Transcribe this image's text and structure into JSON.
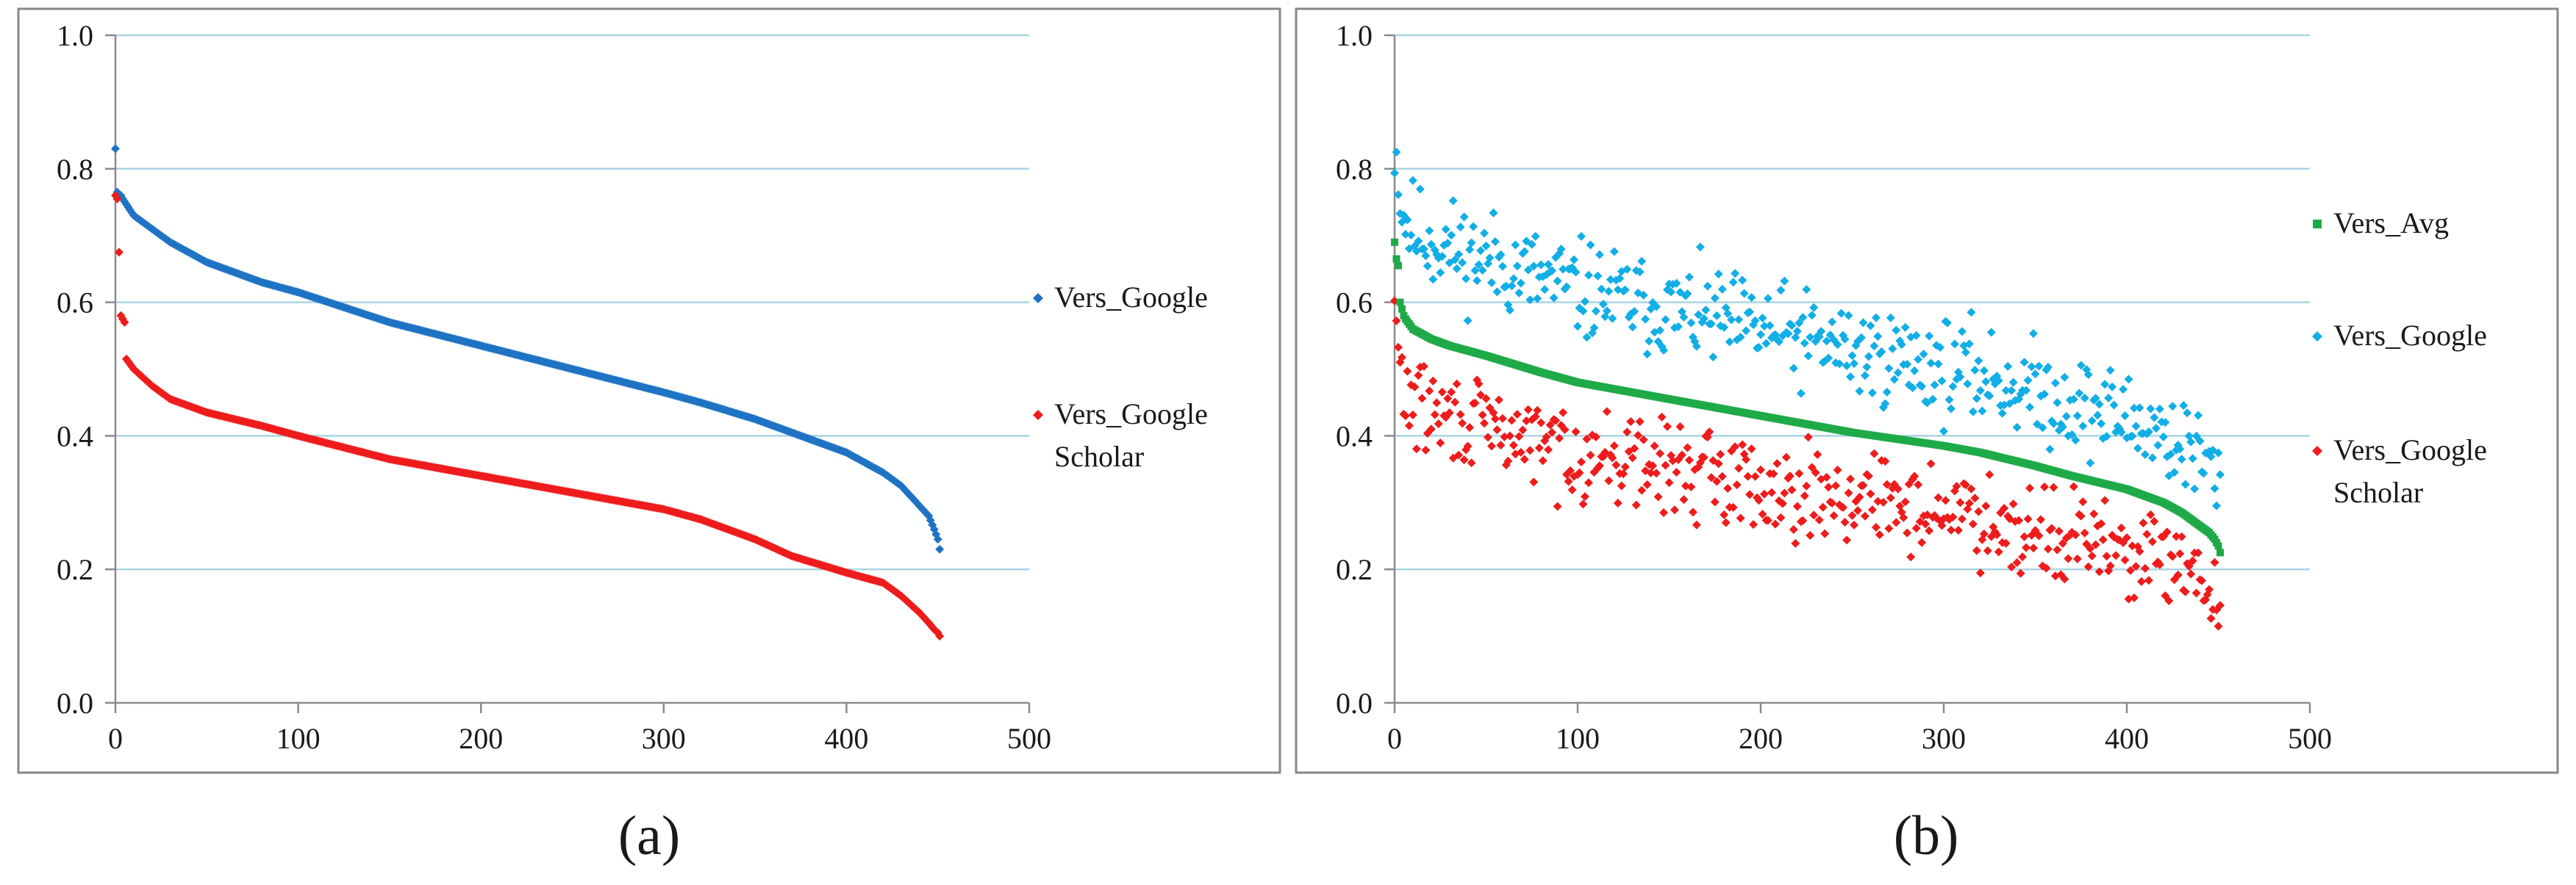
{
  "colors": {
    "google": "#1f73c4",
    "google_light": "#12aee6",
    "scholar": "#ee1c1c",
    "avg": "#1faa48",
    "grid": "#a9d4e4",
    "axis": "#8a8a8a",
    "frame": "#878787",
    "text": "#1a1a1a"
  },
  "chart_data": [
    {
      "type": "scatter",
      "panel_label": "(a)",
      "xlim": [
        0,
        500
      ],
      "ylim": [
        0.0,
        1.0
      ],
      "xticks": [
        "0",
        "100",
        "200",
        "300",
        "400",
        "500"
      ],
      "yticks": [
        "0.0",
        "0.2",
        "0.4",
        "0.6",
        "0.8",
        "1.0"
      ],
      "grid": true,
      "legend_position": "right",
      "legend": [
        {
          "lines": [
            "Vers_Google"
          ],
          "series": "google",
          "marker": "diamond"
        },
        {
          "lines": [
            "Vers_Google",
            "Scholar"
          ],
          "series": "scholar",
          "marker": "diamond"
        }
      ],
      "series": [
        {
          "key": "google",
          "name": "Vers_Google",
          "n": 452,
          "sorted_descending": true,
          "outliers": [
            [
              0,
              0.83
            ],
            [
              1,
              0.765
            ],
            [
              2,
              0.76
            ],
            [
              3,
              0.76
            ]
          ],
          "curve_x": [
            4,
            10,
            20,
            30,
            50,
            80,
            100,
            150,
            200,
            250,
            300,
            320,
            350,
            370,
            400,
            420,
            430,
            440,
            445,
            448,
            450,
            451,
            452
          ],
          "curve_y": [
            0.755,
            0.73,
            0.71,
            0.69,
            0.66,
            0.63,
            0.615,
            0.57,
            0.535,
            0.5,
            0.465,
            0.45,
            0.425,
            0.405,
            0.375,
            0.345,
            0.325,
            0.295,
            0.28,
            0.26,
            0.245,
            0.23,
            0.205
          ]
        },
        {
          "key": "scholar",
          "name": "Vers_Google Scholar",
          "n": 452,
          "sorted_descending": true,
          "outliers": [
            [
              0,
              0.76
            ],
            [
              1,
              0.755
            ],
            [
              2,
              0.675
            ],
            [
              3,
              0.58
            ],
            [
              4,
              0.575
            ],
            [
              5,
              0.57
            ]
          ],
          "curve_x": [
            6,
            10,
            20,
            30,
            50,
            80,
            100,
            150,
            200,
            250,
            300,
            320,
            350,
            370,
            400,
            420,
            430,
            440,
            445,
            448,
            450,
            451,
            452
          ],
          "curve_y": [
            0.515,
            0.5,
            0.475,
            0.455,
            0.435,
            0.415,
            0.4,
            0.365,
            0.34,
            0.315,
            0.29,
            0.275,
            0.245,
            0.22,
            0.195,
            0.18,
            0.16,
            0.135,
            0.12,
            0.11,
            0.105,
            0.1,
            0.095
          ]
        }
      ]
    },
    {
      "type": "scatter",
      "panel_label": "(b)",
      "xlim": [
        0,
        500
      ],
      "ylim": [
        0.0,
        1.0
      ],
      "xticks": [
        "0",
        "100",
        "200",
        "300",
        "400",
        "500"
      ],
      "yticks": [
        "0.0",
        "0.2",
        "0.4",
        "0.6",
        "0.8",
        "1.0"
      ],
      "grid": true,
      "legend_position": "right",
      "legend": [
        {
          "lines": [
            "Vers_Avg"
          ],
          "series": "avg",
          "marker": "square"
        },
        {
          "lines": [
            "Vers_Google"
          ],
          "series": "google_light",
          "marker": "diamond"
        },
        {
          "lines": [
            "Vers_Google",
            "Scholar"
          ],
          "series": "scholar",
          "marker": "diamond"
        }
      ],
      "series": [
        {
          "key": "avg",
          "name": "Vers_Avg",
          "n": 452,
          "sorted_descending": true,
          "outliers": [
            [
              0,
              0.69
            ],
            [
              1,
              0.665
            ],
            [
              2,
              0.655
            ],
            [
              3,
              0.6
            ],
            [
              4,
              0.59
            ],
            [
              5,
              0.58
            ]
          ],
          "curve_x": [
            6,
            10,
            20,
            30,
            50,
            80,
            100,
            150,
            200,
            250,
            300,
            320,
            350,
            370,
            400,
            420,
            430,
            440,
            445,
            448,
            450,
            451,
            452
          ],
          "curve_y": [
            0.575,
            0.56,
            0.545,
            0.535,
            0.52,
            0.495,
            0.48,
            0.455,
            0.43,
            0.405,
            0.385,
            0.375,
            0.355,
            0.34,
            0.32,
            0.3,
            0.285,
            0.265,
            0.255,
            0.245,
            0.235,
            0.225,
            0.215
          ]
        },
        {
          "key": "google_light",
          "name": "Vers_Google",
          "n": 452,
          "noisy_around": "avg",
          "offset_start": 0.15,
          "offset_end": 0.1,
          "spread": 0.11,
          "seed": 11
        },
        {
          "key": "scholar",
          "name": "Vers_Google Scholar",
          "n": 452,
          "noisy_around": "avg",
          "offset_start": -0.11,
          "offset_end": -0.09,
          "spread": 0.1,
          "seed": 29
        }
      ]
    }
  ]
}
